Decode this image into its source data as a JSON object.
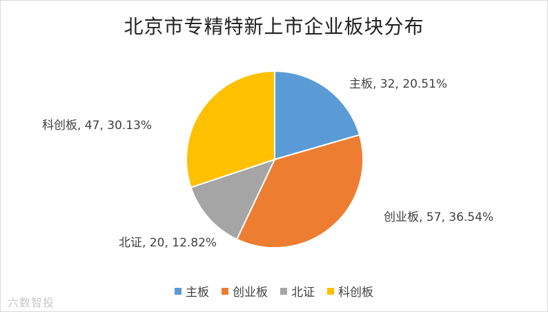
{
  "chart_data": {
    "type": "pie",
    "title": "北京市专精特新上市企业板块分布",
    "slices": [
      {
        "name": "主板",
        "value": 32,
        "percent": "20.51%",
        "color": "#5B9BD5"
      },
      {
        "name": "创业板",
        "value": 57,
        "percent": "36.54%",
        "color": "#ED7D31"
      },
      {
        "name": "北证",
        "value": 20,
        "percent": "12.82%",
        "color": "#A5A5A5"
      },
      {
        "name": "科创板",
        "value": 47,
        "percent": "30.13%",
        "color": "#FFC000"
      }
    ],
    "legend_position": "bottom",
    "data_labels": [
      "主板, 32, 20.51%",
      "创业板, 57, 36.54%",
      "北证, 20, 12.82%",
      "科创板, 47, 30.13%"
    ]
  },
  "watermark": "六数智投"
}
